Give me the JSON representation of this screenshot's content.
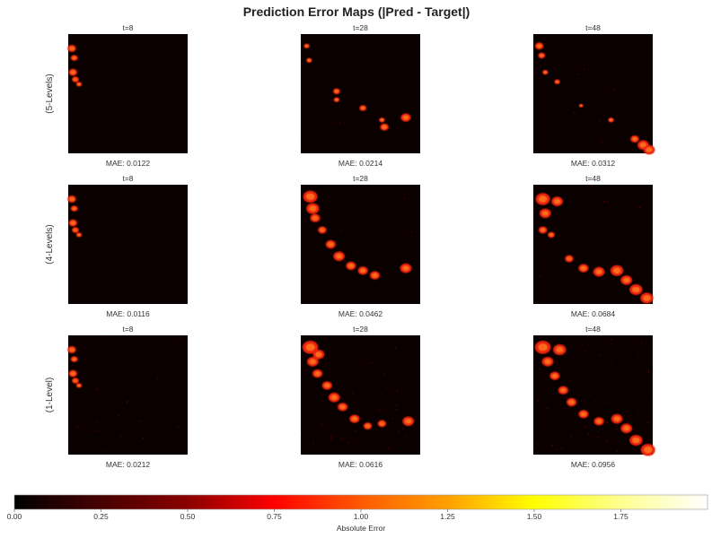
{
  "chart_data": {
    "type": "heatmap",
    "title": "Prediction Error Maps (|Pred - Target|)",
    "columns": [
      "t=8",
      "t=28",
      "t=48"
    ],
    "rows": [
      "(5-Levels)",
      "(4-Levels)",
      "(1-Level)"
    ],
    "mae_labels": [
      [
        "MAE: 0.0122",
        "MAE: 0.0214",
        "MAE: 0.0312"
      ],
      [
        "MAE: 0.0116",
        "MAE: 0.0462",
        "MAE: 0.0684"
      ],
      [
        "MAE: 0.0212",
        "MAE: 0.0616",
        "MAE: 0.0956"
      ]
    ],
    "colorbar": {
      "label": "Absolute Error",
      "colormap": "hot",
      "vmin": 0,
      "vmax": 2,
      "ticks": [
        "0.00",
        "0.25",
        "0.50",
        "0.75",
        "1.00",
        "1.25",
        "1.50",
        "1.75"
      ]
    }
  }
}
